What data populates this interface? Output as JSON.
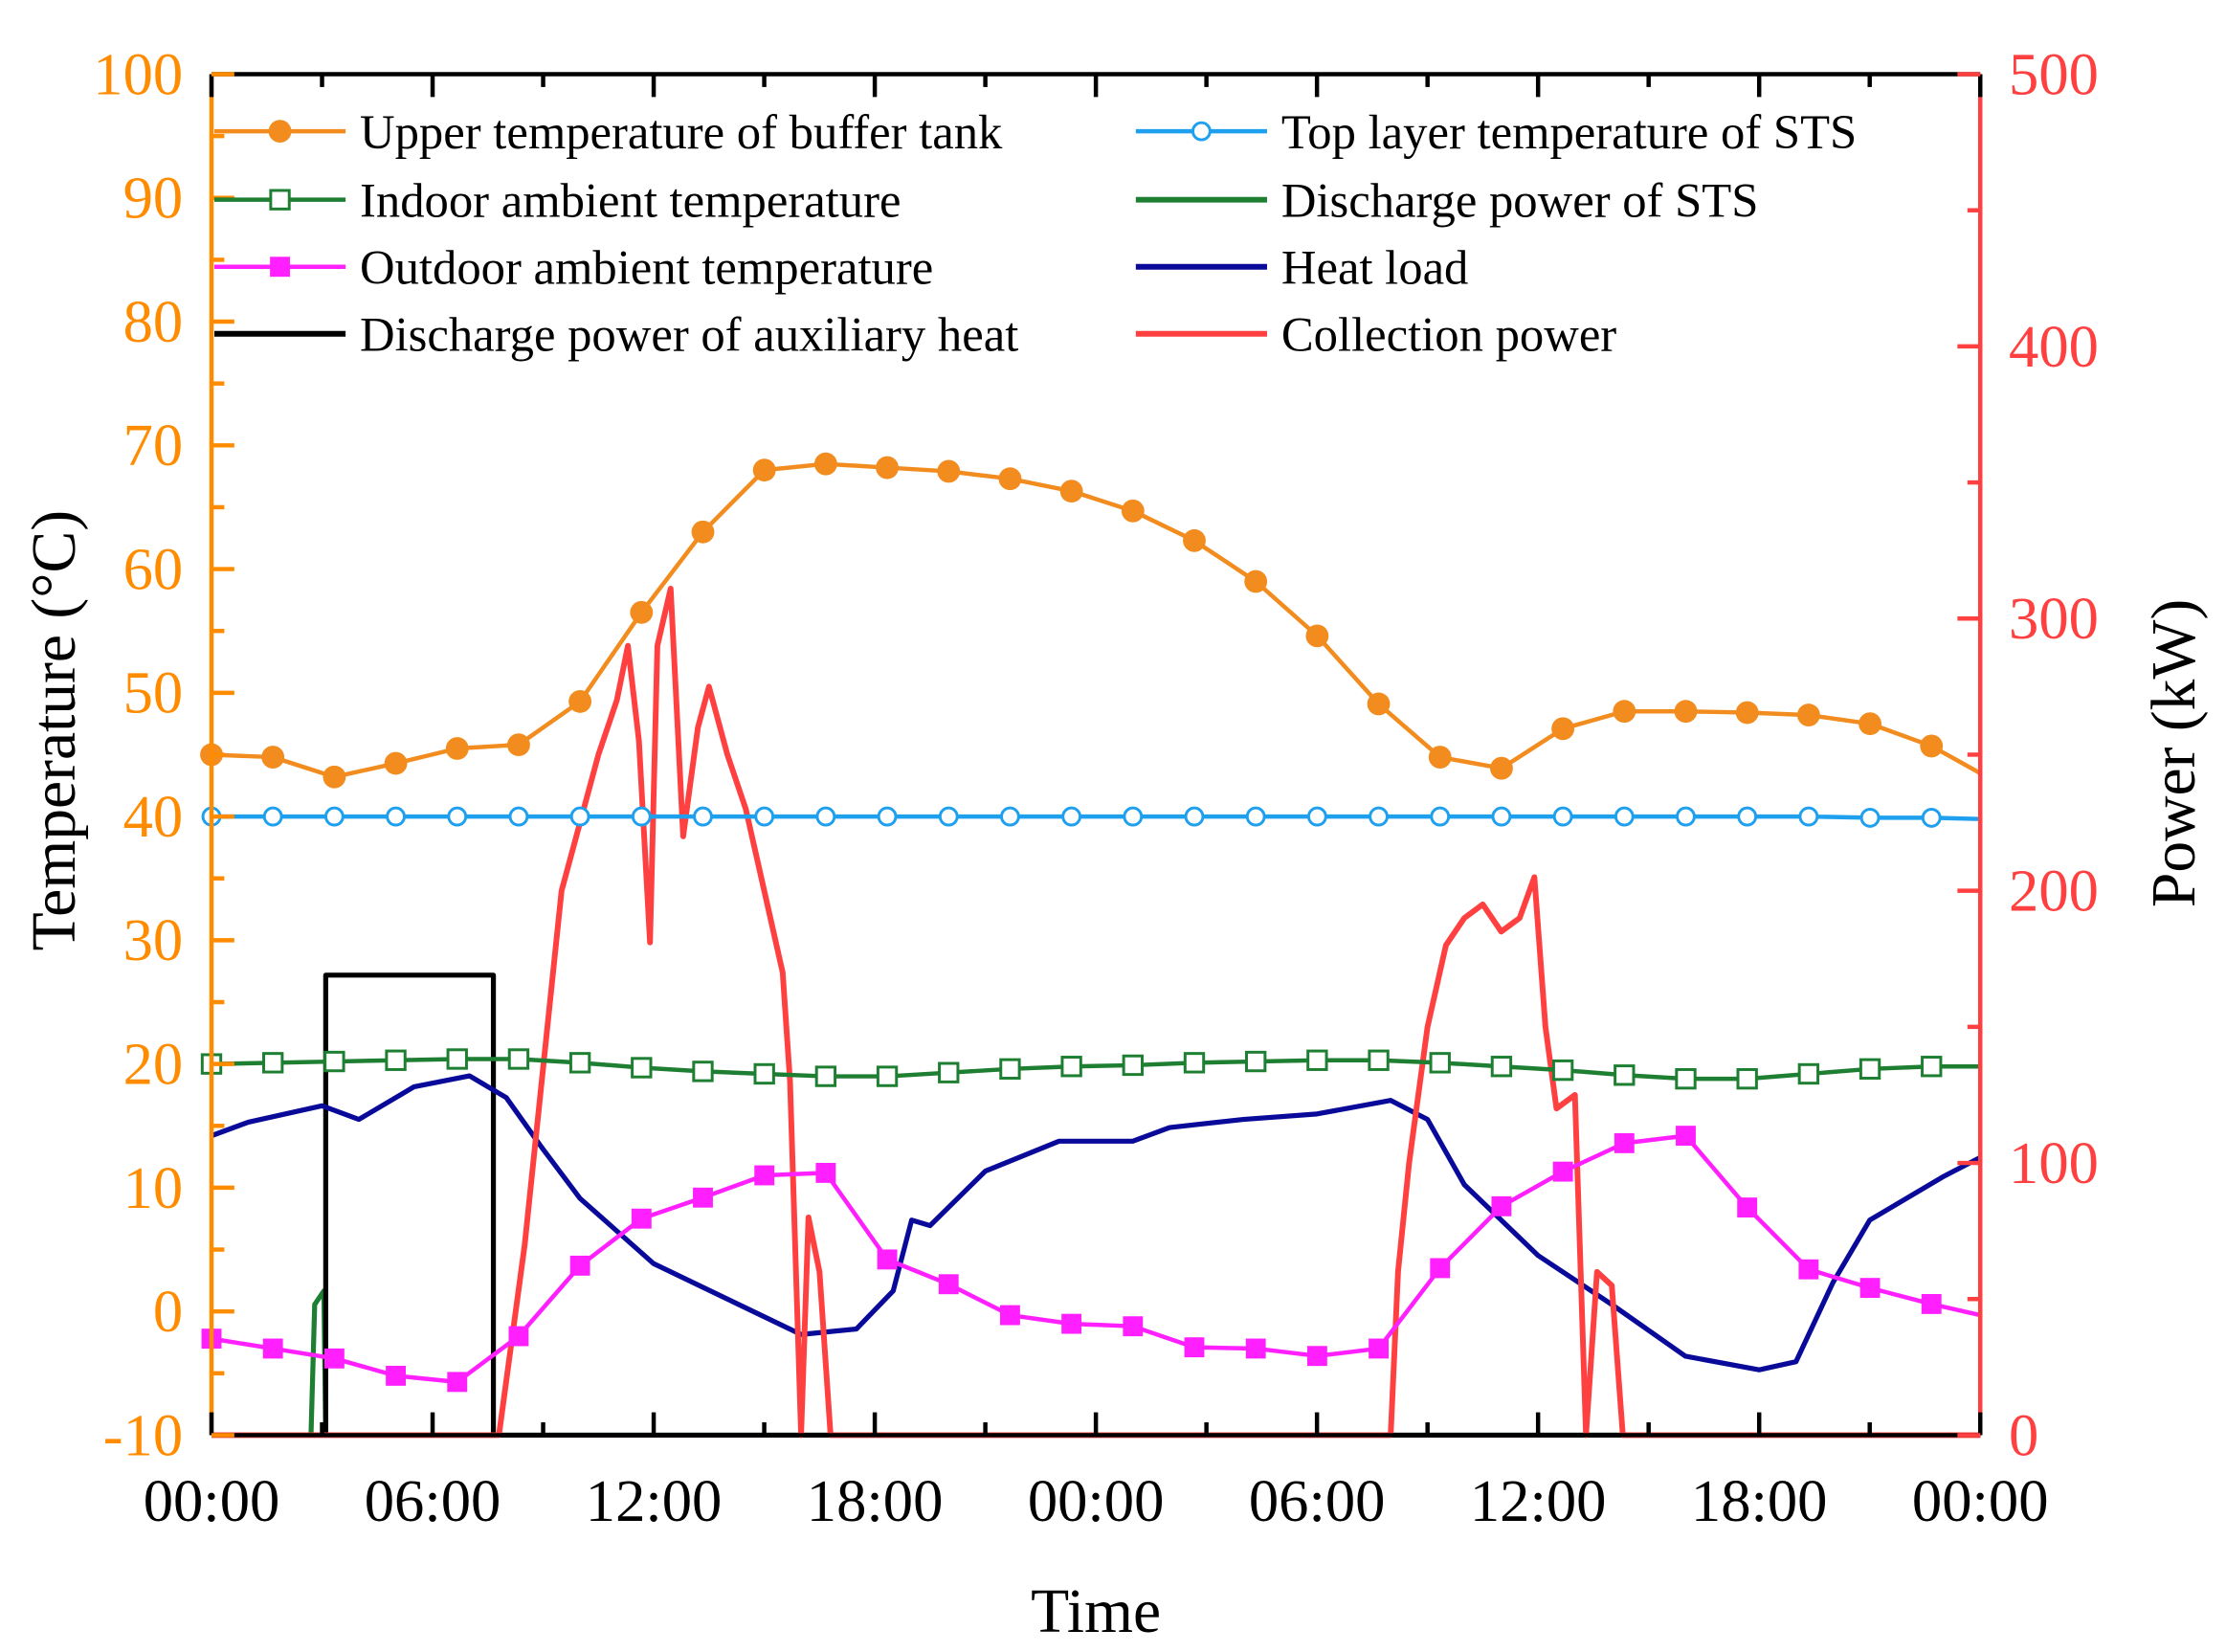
{
  "chart_data": {
    "type": "line",
    "xlabel": "Time",
    "ylabel_left": "Temperature (°C)",
    "ylabel_right": "Power (kW)",
    "xlim": [
      0,
      48
    ],
    "ylim_left": [
      -10,
      100
    ],
    "ylim_right": [
      0,
      500
    ],
    "x_ticks": [
      "00:00",
      "06:00",
      "12:00",
      "18:00",
      "00:00",
      "06:00",
      "12:00",
      "18:00",
      "00:00"
    ],
    "y_left_ticks": [
      "-10",
      "0",
      "10",
      "20",
      "30",
      "40",
      "50",
      "60",
      "70",
      "80",
      "90",
      "100"
    ],
    "y_right_ticks": [
      "0",
      "100",
      "200",
      "300",
      "400",
      "500"
    ],
    "legend_position": "top",
    "colors": {
      "left_axis": "#ff8c00",
      "right_axis": "#ff4040"
    },
    "series": [
      {
        "name": "Upper temperature of buffer tank",
        "axis": "left",
        "color": "#f28c1e",
        "marker": "filled-circle",
        "marker_step_h": 1.667,
        "values": [
          45,
          44.8,
          43.2,
          44.3,
          45.5,
          45.8,
          49.3,
          56.5,
          63,
          68,
          68.5,
          68.2,
          67.9,
          67.3,
          66.3,
          64.7,
          62.3,
          59,
          54.6,
          49.1,
          44.8,
          43.9,
          47.1,
          48.5,
          48.5,
          48.4,
          48.2,
          47.5,
          45.7
        ],
        "end_value": 43.5
      },
      {
        "name": "Top layer temperature of STS",
        "axis": "left",
        "color": "#1fa0ef",
        "marker": "open-circle",
        "marker_step_h": 1.667,
        "values": [
          40,
          40,
          40,
          40,
          40,
          40,
          40,
          40,
          40,
          40,
          40,
          40,
          40,
          40,
          40,
          40,
          40,
          40,
          40,
          40,
          40,
          40,
          40,
          40,
          40,
          40,
          40,
          39.9,
          39.9
        ],
        "end_value": 39.8
      },
      {
        "name": "Indoor ambient temperature",
        "axis": "left",
        "color": "#1e7f32",
        "marker": "open-square",
        "marker_step_h": 1.667,
        "values": [
          20,
          20.1,
          20.2,
          20.3,
          20.4,
          20.4,
          20.1,
          19.7,
          19.4,
          19.2,
          19.0,
          19.0,
          19.3,
          19.6,
          19.8,
          19.9,
          20.1,
          20.2,
          20.3,
          20.3,
          20.1,
          19.8,
          19.5,
          19.1,
          18.8,
          18.8,
          19.2,
          19.6,
          19.8
        ],
        "end_value": 19.8
      },
      {
        "name": "Outdoor ambient temperature",
        "axis": "left",
        "color": "#ff1fff",
        "marker": "filled-square",
        "marker_step_h": 1.667,
        "values": [
          -2.2,
          -3.0,
          -3.8,
          -5.2,
          -5.7,
          -2.0,
          3.7,
          7.5,
          9.2,
          11.0,
          11.2,
          4.2,
          2.2,
          -0.3,
          -1.0,
          -1.2,
          -2.9,
          -3.0,
          -3.6,
          -3.0,
          3.5,
          8.5,
          11.3,
          13.6,
          14.2,
          8.4,
          3.4,
          1.9,
          0.6
        ],
        "end_value": -0.3
      },
      {
        "name": "Discharge power of STS",
        "axis": "right",
        "color": "#1e7f32",
        "marker": "none",
        "points": [
          [
            0,
            0
          ],
          [
            2.7,
            0
          ],
          [
            2.8,
            48
          ],
          [
            3.05,
            53
          ],
          [
            3.1,
            0
          ],
          [
            48,
            0
          ]
        ]
      },
      {
        "name": "Heat load",
        "axis": "right",
        "color": "#0a0a9a",
        "marker": "none",
        "points": [
          [
            0,
            110
          ],
          [
            1,
            115
          ],
          [
            3,
            121
          ],
          [
            4,
            116
          ],
          [
            5.5,
            128
          ],
          [
            7,
            132
          ],
          [
            8,
            124
          ],
          [
            9,
            105
          ],
          [
            10,
            87
          ],
          [
            12,
            63
          ],
          [
            14,
            50
          ],
          [
            16,
            37
          ],
          [
            17.5,
            39
          ],
          [
            18.5,
            53
          ],
          [
            19,
            79
          ],
          [
            19.5,
            77
          ],
          [
            21,
            97
          ],
          [
            23,
            108
          ],
          [
            25,
            108
          ],
          [
            26,
            113
          ],
          [
            28,
            116
          ],
          [
            30,
            118
          ],
          [
            32,
            123
          ],
          [
            33,
            116
          ],
          [
            34,
            92
          ],
          [
            36,
            66
          ],
          [
            38,
            48
          ],
          [
            40,
            29
          ],
          [
            42,
            24
          ],
          [
            43,
            27
          ],
          [
            44,
            56
          ],
          [
            45,
            79
          ],
          [
            46,
            87
          ],
          [
            47,
            95
          ],
          [
            48,
            102
          ]
        ]
      },
      {
        "name": "Discharge power of auxiliary heat",
        "axis": "right",
        "color": "#000000",
        "marker": "none",
        "points": [
          [
            0,
            0
          ],
          [
            3.1,
            0
          ],
          [
            3.1,
            169
          ],
          [
            7.65,
            169
          ],
          [
            7.65,
            0
          ],
          [
            48,
            0
          ]
        ]
      },
      {
        "name": "Collection power",
        "axis": "right",
        "color": "#ff4040",
        "marker": "none",
        "points": [
          [
            0,
            0
          ],
          [
            7.8,
            0
          ],
          [
            8.5,
            70
          ],
          [
            9.5,
            200
          ],
          [
            10.5,
            250
          ],
          [
            11,
            270
          ],
          [
            11.3,
            290
          ],
          [
            11.6,
            255
          ],
          [
            11.9,
            181
          ],
          [
            12.1,
            290
          ],
          [
            12.46,
            311
          ],
          [
            12.8,
            220
          ],
          [
            13.2,
            260
          ],
          [
            13.5,
            275
          ],
          [
            14,
            250
          ],
          [
            14.5,
            230
          ],
          [
            15,
            200
          ],
          [
            15.5,
            170
          ],
          [
            15.7,
            130
          ],
          [
            16,
            0
          ],
          [
            16.2,
            80
          ],
          [
            16.5,
            60
          ],
          [
            16.8,
            0
          ],
          [
            32,
            0
          ],
          [
            32.2,
            60
          ],
          [
            32.5,
            100
          ],
          [
            33,
            150
          ],
          [
            33.5,
            180
          ],
          [
            34,
            190
          ],
          [
            34.5,
            195
          ],
          [
            35,
            185
          ],
          [
            35.5,
            190
          ],
          [
            35.9,
            205
          ],
          [
            36.2,
            150
          ],
          [
            36.5,
            120
          ],
          [
            37,
            125
          ],
          [
            37.3,
            0
          ],
          [
            37.6,
            60
          ],
          [
            38,
            55
          ],
          [
            38.3,
            0
          ],
          [
            48,
            0
          ]
        ]
      }
    ]
  }
}
